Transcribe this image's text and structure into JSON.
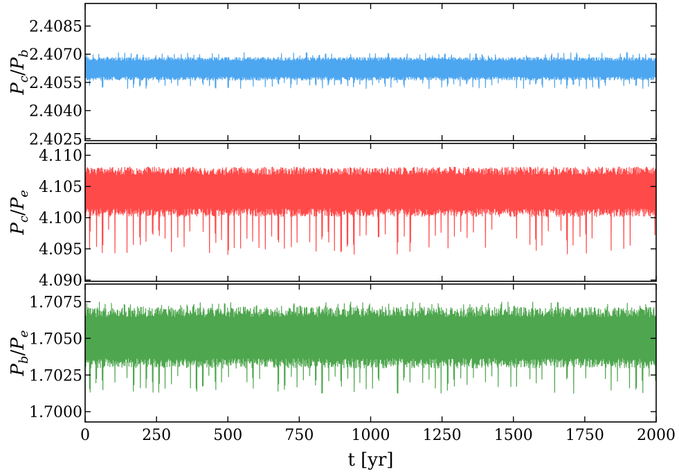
{
  "chart_data": [
    {
      "type": "line",
      "ylabel": "P_c/P_b",
      "ylabel_main1": "P",
      "ylabel_sub1": "c",
      "ylabel_slash": "/",
      "ylabel_main2": "P",
      "ylabel_sub2": "b",
      "ylim": [
        2.4024,
        2.4097
      ],
      "yticks": [
        2.4025,
        2.404,
        2.4055,
        2.407,
        2.4085
      ],
      "ytick_labels": [
        "2.4025",
        "2.4040",
        "2.4055",
        "2.4070",
        "2.4085"
      ],
      "color": "#4da6f0",
      "series": [
        {
          "mean": 2.40622,
          "band_low": 2.4057,
          "band_high": 2.40675,
          "spike_low": 2.40515,
          "spike_high": 2.4071,
          "period_yr": 22,
          "x_range": [
            0,
            2000
          ]
        }
      ]
    },
    {
      "type": "line",
      "ylabel": "P_c/P_e",
      "ylabel_main1": "P",
      "ylabel_sub1": "c",
      "ylabel_slash": "/",
      "ylabel_main2": "P",
      "ylabel_sub2": "e",
      "ylim": [
        4.0898,
        4.1119
      ],
      "yticks": [
        4.09,
        4.095,
        4.1,
        4.105,
        4.11
      ],
      "ytick_labels": [
        "4.090",
        "4.095",
        "4.100",
        "4.105",
        "4.110"
      ],
      "color": "#ff4a4a",
      "series": [
        {
          "mean": 4.103,
          "band_low": 4.1008,
          "band_high": 4.1075,
          "spike_low": 4.094,
          "spike_high": 4.108,
          "period_yr": 22,
          "x_range": [
            0,
            2000
          ]
        }
      ]
    },
    {
      "type": "line",
      "ylabel": "P_b/P_e",
      "ylabel_main1": "P",
      "ylabel_sub1": "b",
      "ylabel_slash": "/",
      "ylabel_main2": "P",
      "ylabel_sub2": "e",
      "ylim": [
        1.6993,
        1.7087
      ],
      "yticks": [
        1.7,
        1.7025,
        1.705,
        1.7075
      ],
      "ytick_labels": [
        "1.7000",
        "1.7025",
        "1.7050",
        "1.7075"
      ],
      "color": "#4ea64e",
      "series": [
        {
          "mean": 1.705,
          "band_low": 1.7033,
          "band_high": 1.7068,
          "spike_low": 1.7012,
          "spike_high": 1.7075,
          "period_yr": 22,
          "x_range": [
            0,
            2000
          ]
        }
      ]
    }
  ],
  "x_axis": {
    "xlim": [
      0,
      2000
    ],
    "xticks": [
      0,
      250,
      500,
      750,
      1000,
      1250,
      1500,
      1750,
      2000
    ],
    "xtick_labels": [
      "0",
      "250",
      "500",
      "750",
      "1000",
      "1250",
      "1500",
      "1750",
      "2000"
    ],
    "xlabel": "t [yr]"
  }
}
